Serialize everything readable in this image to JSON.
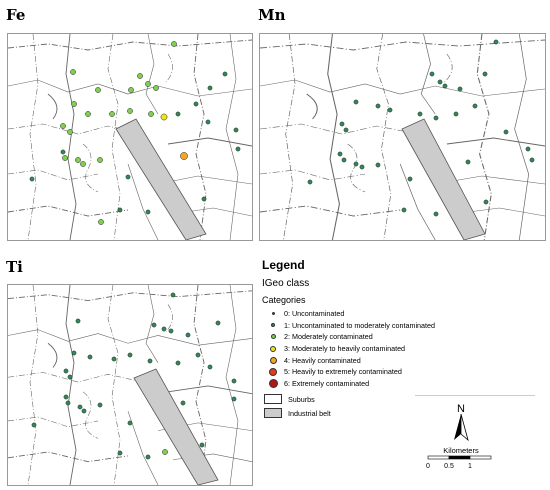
{
  "panels": [
    {
      "id": "fe",
      "label": "Fe"
    },
    {
      "id": "mn",
      "label": "Mn"
    },
    {
      "id": "ti",
      "label": "Ti"
    }
  ],
  "legend": {
    "title": "Legend",
    "subtitle": "IGeo class",
    "categories_label": "Categories",
    "categories": [
      {
        "label": "0: Uncontaminated",
        "color": "#1a5c38"
      },
      {
        "label": "1: Uncontaminated to moderately contaminated",
        "color": "#2e8b57"
      },
      {
        "label": "2: Moderately contaminated",
        "color": "#7ed14e"
      },
      {
        "label": "3: Moderately to heavily contaminated",
        "color": "#f2e21b"
      },
      {
        "label": "4: Heavily contaminated",
        "color": "#f5a623"
      },
      {
        "label": "5: Heavily to extremely contaminated",
        "color": "#e03c1e"
      },
      {
        "label": "6: Extremely contaminated",
        "color": "#b01818"
      }
    ],
    "suburbs_label": "Suburbs",
    "industrial_label": "Industrial belt",
    "industrial_color": "#cccccc"
  },
  "scale": {
    "north": "N",
    "units": "Kilometers",
    "ticks": [
      "0",
      "0.5",
      "1"
    ]
  }
}
